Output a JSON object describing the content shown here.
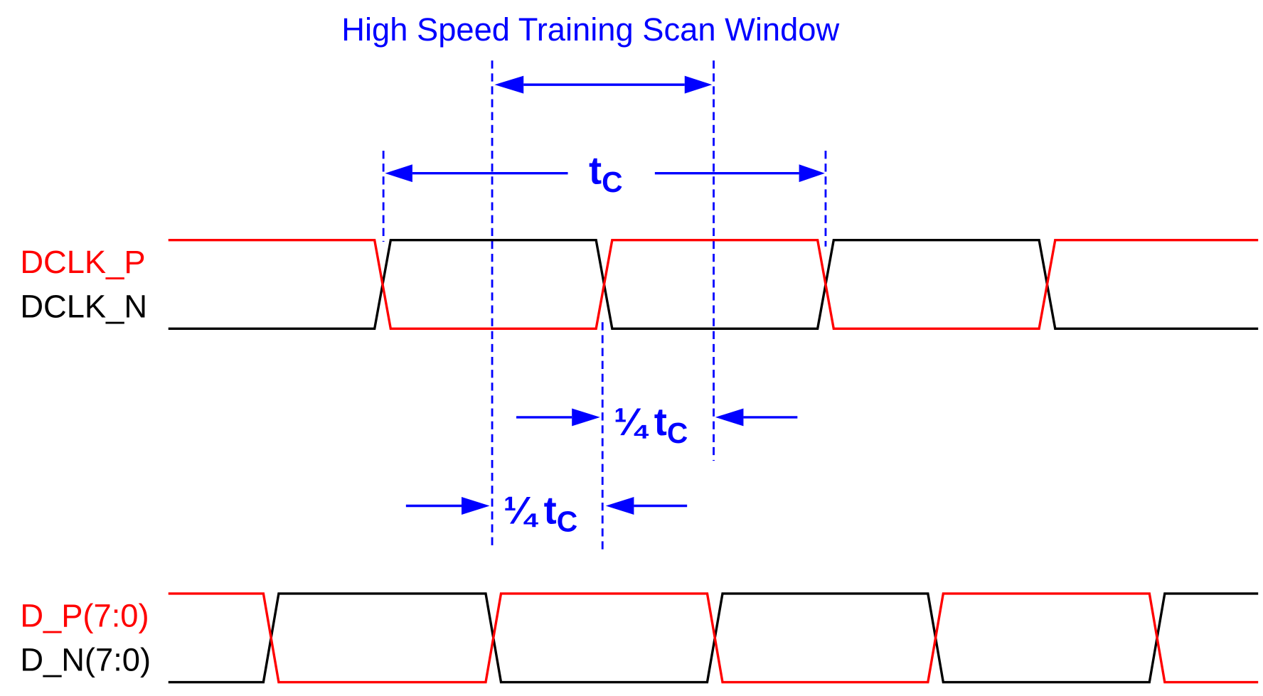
{
  "title": "High Speed Training Scan Window",
  "colors": {
    "annotation": "#0000ff",
    "positive": "#ff0000",
    "negative": "#000000"
  },
  "signals": {
    "dclk_p": "DCLK_P",
    "dclk_n": "DCLK_N",
    "d_p": "D_P(7:0)",
    "d_n": "D_N(7:0)"
  },
  "annotations": {
    "period": {
      "symbol": "t",
      "subscript": "C"
    },
    "quarter_upper": {
      "fraction": "¼",
      "symbol": "t",
      "subscript": "C"
    },
    "quarter_lower": {
      "fraction": "¼",
      "symbol": "t",
      "subscript": "C"
    }
  }
}
